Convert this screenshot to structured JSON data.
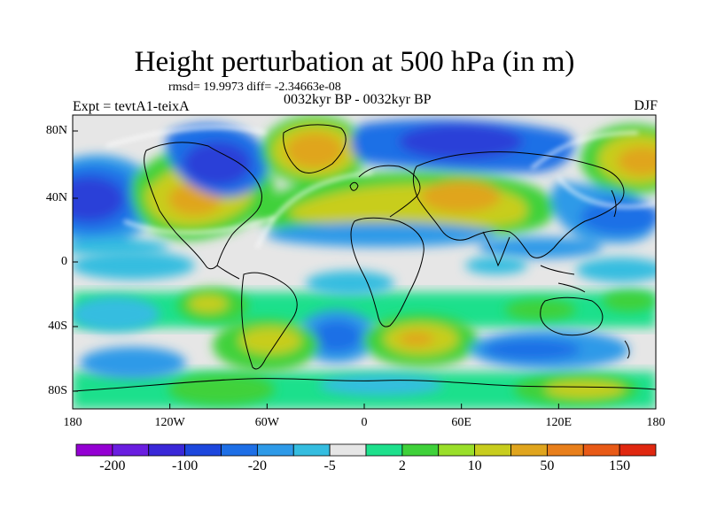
{
  "header": {
    "title": "Height perturbation at 500 hPa (in m)",
    "stats": "rmsd= 19.9973  diff= -2.34663e-08",
    "experiment": "Expt = tevtA1-teixA",
    "subtitle": "0032kyr BP - 0032kyr BP",
    "season": "DJF"
  },
  "axes": {
    "y_ticks": [
      "80N",
      "40N",
      "0",
      "40S",
      "80S"
    ],
    "x_ticks": [
      "180",
      "120W",
      "60W",
      "0",
      "60E",
      "120E",
      "180"
    ]
  },
  "colorbar": {
    "colors": [
      "#9400d3",
      "#6a1ee0",
      "#3a28d8",
      "#1d47dd",
      "#1e6fe6",
      "#2e9ae8",
      "#35bde0",
      "#e6e6e6",
      "#1ee08c",
      "#3fd13a",
      "#9adf2a",
      "#c8cd1e",
      "#e0a51e",
      "#e87f1c",
      "#e85a17",
      "#e02810"
    ],
    "labels": [
      "-200",
      "-100",
      "-20",
      "-5",
      "2",
      "10",
      "50",
      "150"
    ]
  },
  "map": {
    "frame": {
      "lon": [
        -180,
        180
      ],
      "lat": [
        -90,
        90
      ]
    },
    "colors": {
      "low_strong": "#2a3fd8",
      "low": "#1e6fe6",
      "low_weak": "#2e9ae8",
      "neutral": "#e6e6e6",
      "high_weak": "#3fd13a",
      "high": "#c8cd1e",
      "high_strong": "#e0a51e"
    }
  }
}
